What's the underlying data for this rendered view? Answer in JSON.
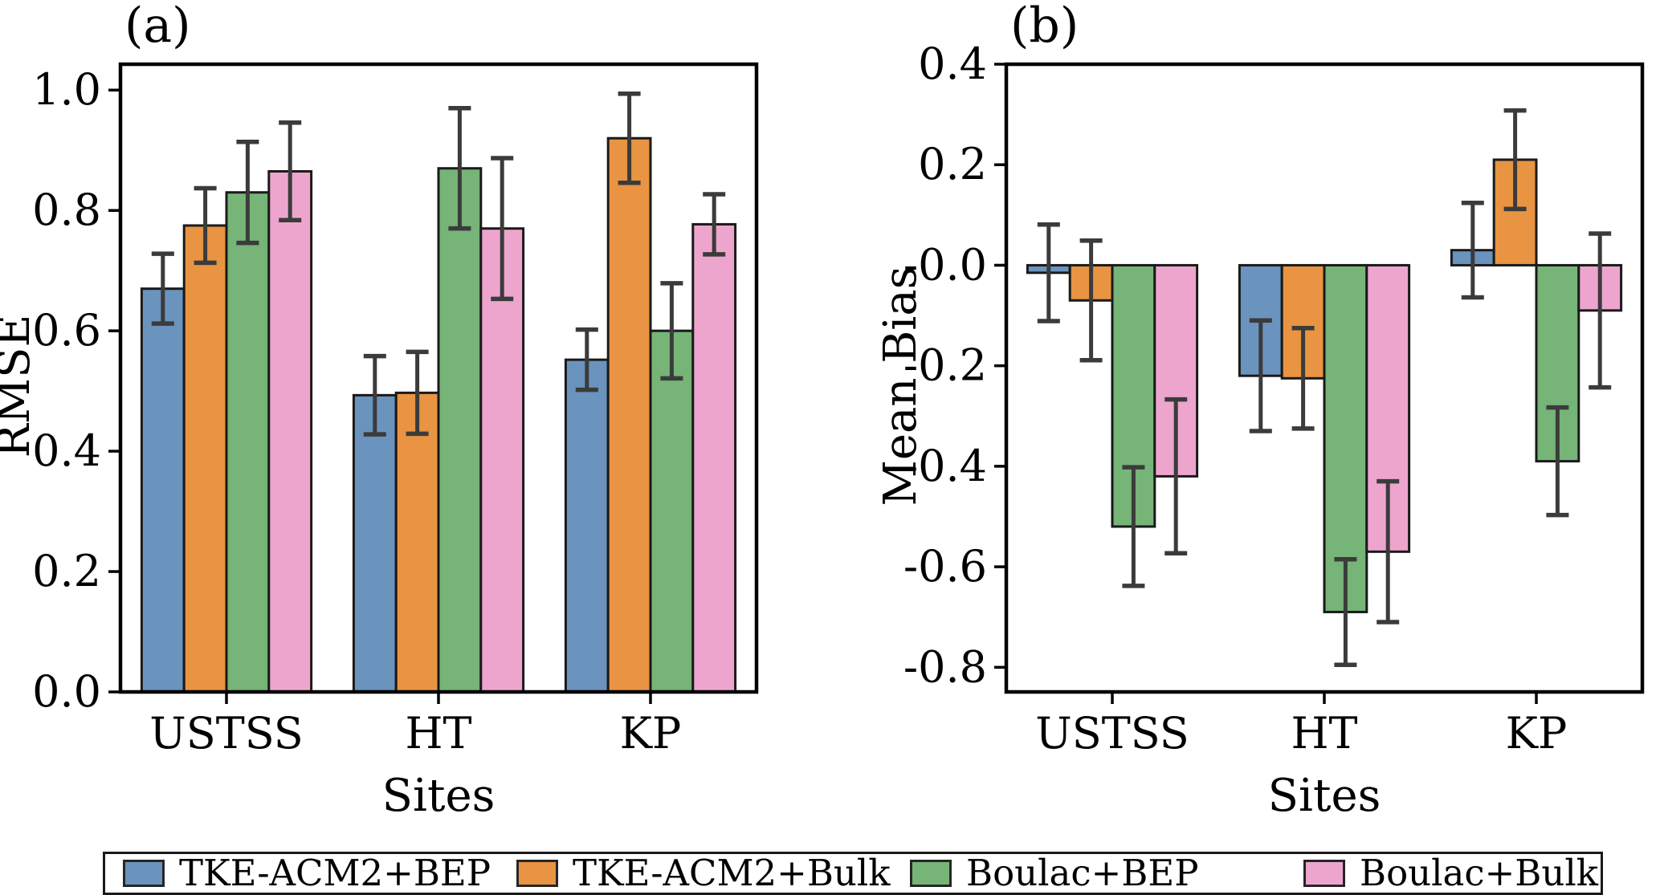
{
  "figure": {
    "panel_a_letter": "(a)",
    "panel_b_letter": "(b)"
  },
  "chart_data": [
    {
      "type": "bar",
      "title": "(a)",
      "ylabel": "RMSE",
      "xlabel": "Sites",
      "categories": [
        "USTSS",
        "HT",
        "KP"
      ],
      "series": [
        {
          "name": "TKE-ACM2+BEP",
          "color": "#6a93be",
          "values": [
            0.67,
            0.493,
            0.552
          ],
          "errors": [
            0.058,
            0.065,
            0.05
          ]
        },
        {
          "name": "TKE-ACM2+Bulk",
          "color": "#e89442",
          "values": [
            0.775,
            0.497,
            0.92
          ],
          "errors": [
            0.062,
            0.068,
            0.074
          ]
        },
        {
          "name": "Boulac+BEP",
          "color": "#76b478",
          "values": [
            0.83,
            0.87,
            0.6
          ],
          "errors": [
            0.084,
            0.1,
            0.079
          ]
        },
        {
          "name": "Boulac+Bulk",
          "color": "#eea5cd",
          "values": [
            0.865,
            0.77,
            0.777
          ],
          "errors": [
            0.081,
            0.117,
            0.05
          ]
        }
      ],
      "ylim": [
        0,
        1.043
      ],
      "yticks": [
        0.0,
        0.2,
        0.4,
        0.6,
        0.8,
        1.0
      ],
      "ytick_labels": [
        "0.0",
        "0.2",
        "0.4",
        "0.6",
        "0.8",
        "1.0"
      ],
      "grid": false,
      "legend_position": "bottom-outside"
    },
    {
      "type": "bar",
      "title": "(b)",
      "ylabel": "Mean Bias",
      "xlabel": "Sites",
      "categories": [
        "USTSS",
        "HT",
        "KP"
      ],
      "series": [
        {
          "name": "TKE-ACM2+BEP",
          "color": "#6a93be",
          "values": [
            -0.015,
            -0.22,
            0.03
          ],
          "errors": [
            0.096,
            0.11,
            0.094
          ]
        },
        {
          "name": "TKE-ACM2+Bulk",
          "color": "#e89442",
          "values": [
            -0.07,
            -0.225,
            0.21
          ],
          "errors": [
            0.119,
            0.1,
            0.098
          ]
        },
        {
          "name": "Boulac+BEP",
          "color": "#76b478",
          "values": [
            -0.52,
            -0.69,
            -0.39
          ],
          "errors": [
            0.118,
            0.105,
            0.107
          ]
        },
        {
          "name": "Boulac+Bulk",
          "color": "#eea5cd",
          "values": [
            -0.42,
            -0.57,
            -0.09
          ],
          "errors": [
            0.153,
            0.14,
            0.153
          ]
        }
      ],
      "ylim": [
        -0.849,
        0.4
      ],
      "yticks": [
        0.4,
        0.2,
        0.0,
        -0.2,
        -0.4,
        -0.6,
        -0.8
      ],
      "ytick_labels": [
        "0.4",
        "0.2",
        "-0.0",
        "-0.2",
        "-0.4",
        "-0.6",
        "-0.8"
      ],
      "grid": false,
      "legend_position": "bottom-outside"
    }
  ],
  "legend": {
    "entries": [
      {
        "label": "TKE-ACM2+BEP",
        "color": "#6a93be"
      },
      {
        "label": "TKE-ACM2+Bulk",
        "color": "#e89442"
      },
      {
        "label": "Boulac+BEP",
        "color": "#76b478"
      },
      {
        "label": "Boulac+Bulk",
        "color": "#eea5cd"
      }
    ]
  },
  "style": {
    "bar_edge_color": "#1a1a1a",
    "errorbar_color": "#3b3b3b",
    "spine_color": "#000000",
    "text_color": "#000000"
  }
}
